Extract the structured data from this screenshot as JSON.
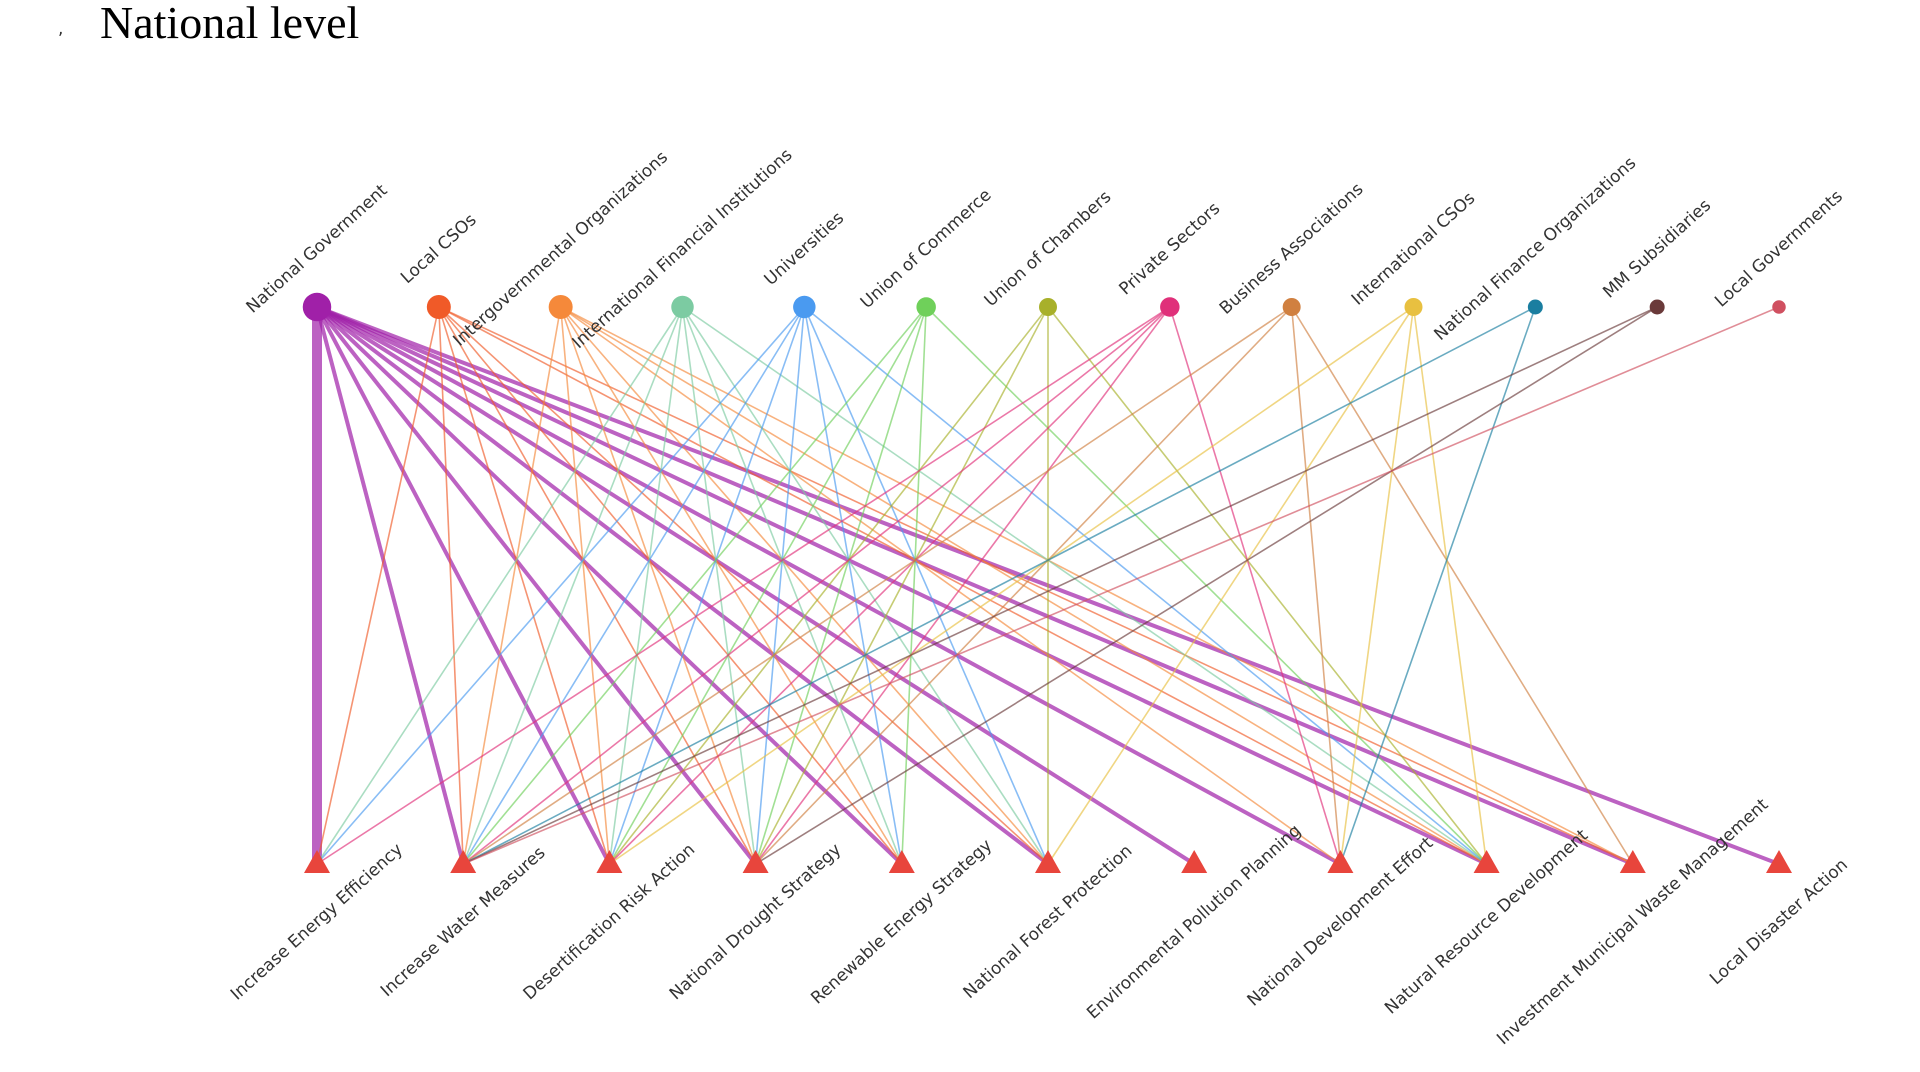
{
  "header": {
    "title": "National level"
  },
  "actors": [
    {
      "label": "National Government",
      "color": "#a020a8"
    },
    {
      "label": "Local CSOs",
      "color": "#f05a28"
    },
    {
      "label": "Intergovernmental Organizations",
      "color": "#f5893a"
    },
    {
      "label": "International Financial Institutions",
      "color": "#7ccba2"
    },
    {
      "label": "Universities",
      "color": "#4a9af0"
    },
    {
      "label": "Union of Commerce",
      "color": "#6fd05a"
    },
    {
      "label": "Union of Chambers",
      "color": "#a8b02a"
    },
    {
      "label": "Private Sectors",
      "color": "#e0307a"
    },
    {
      "label": "Business Associations",
      "color": "#d08040"
    },
    {
      "label": "International CSOs",
      "color": "#e8c040"
    },
    {
      "label": "National Finance Organizations",
      "color": "#1a7ea0"
    },
    {
      "label": "MM Subsidiaries",
      "color": "#6a3a3a"
    },
    {
      "label": "Local Governments",
      "color": "#d05060"
    }
  ],
  "actions": [
    {
      "label": "Increase Energy Efficiency"
    },
    {
      "label": "Increase Water Measures"
    },
    {
      "label": "Desertification Risk Action"
    },
    {
      "label": "National Drought Strategy"
    },
    {
      "label": "Renewable Energy Strategy"
    },
    {
      "label": "National Forest Protection"
    },
    {
      "label": "Environmental Pollution Planning"
    },
    {
      "label": "National Development Effort"
    },
    {
      "label": "Natural Resource Development"
    },
    {
      "label": "Investment Municipal Waste Management"
    },
    {
      "label": "Local Disaster Action"
    }
  ],
  "links": [
    [
      0,
      0
    ],
    [
      0,
      1
    ],
    [
      0,
      2
    ],
    [
      0,
      3
    ],
    [
      0,
      4
    ],
    [
      0,
      5
    ],
    [
      0,
      6
    ],
    [
      0,
      7
    ],
    [
      0,
      8
    ],
    [
      0,
      9
    ],
    [
      0,
      10
    ],
    [
      1,
      0
    ],
    [
      1,
      1
    ],
    [
      1,
      2
    ],
    [
      1,
      3
    ],
    [
      1,
      4
    ],
    [
      1,
      5
    ],
    [
      1,
      8
    ],
    [
      1,
      9
    ],
    [
      2,
      1
    ],
    [
      2,
      2
    ],
    [
      2,
      3
    ],
    [
      2,
      4
    ],
    [
      2,
      5
    ],
    [
      2,
      7
    ],
    [
      2,
      8
    ],
    [
      2,
      9
    ],
    [
      3,
      0
    ],
    [
      3,
      1
    ],
    [
      3,
      2
    ],
    [
      3,
      3
    ],
    [
      3,
      4
    ],
    [
      3,
      5
    ],
    [
      3,
      8
    ],
    [
      4,
      0
    ],
    [
      4,
      1
    ],
    [
      4,
      2
    ],
    [
      4,
      3
    ],
    [
      4,
      4
    ],
    [
      4,
      5
    ],
    [
      4,
      8
    ],
    [
      5,
      1
    ],
    [
      5,
      2
    ],
    [
      5,
      3
    ],
    [
      5,
      4
    ],
    [
      5,
      8
    ],
    [
      6,
      2
    ],
    [
      6,
      3
    ],
    [
      6,
      5
    ],
    [
      6,
      8
    ],
    [
      7,
      0
    ],
    [
      7,
      1
    ],
    [
      7,
      2
    ],
    [
      7,
      3
    ],
    [
      7,
      7
    ],
    [
      8,
      1
    ],
    [
      8,
      3
    ],
    [
      8,
      7
    ],
    [
      8,
      9
    ],
    [
      9,
      2
    ],
    [
      9,
      5
    ],
    [
      9,
      7
    ],
    [
      9,
      8
    ],
    [
      10,
      1
    ],
    [
      10,
      7
    ],
    [
      11,
      1
    ],
    [
      11,
      3
    ],
    [
      12,
      1
    ]
  ]
}
